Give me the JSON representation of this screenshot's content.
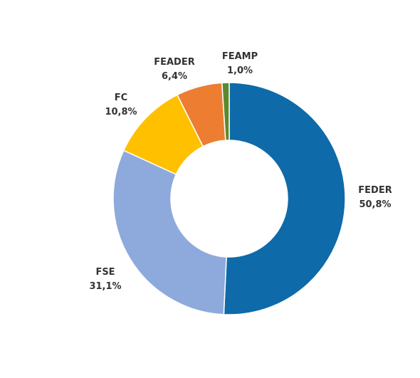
{
  "chart_data": {
    "type": "pie",
    "variant": "donut",
    "title": "",
    "legend": "none",
    "slices": [
      {
        "name": "FEDER",
        "label": "50,8%",
        "value": 50.8,
        "color": "#0E6AA8"
      },
      {
        "name": "FSE",
        "label": "31,1%",
        "value": 31.1,
        "color": "#8EA9DB"
      },
      {
        "name": "FC",
        "label": "10,8%",
        "value": 10.8,
        "color": "#FFC000"
      },
      {
        "name": "FEADER",
        "label": "6,4%",
        "value": 6.4,
        "color": "#ED7D31"
      },
      {
        "name": "FEAMP",
        "label": "1,0%",
        "value": 1.0,
        "color": "#5B8A2E"
      }
    ]
  }
}
